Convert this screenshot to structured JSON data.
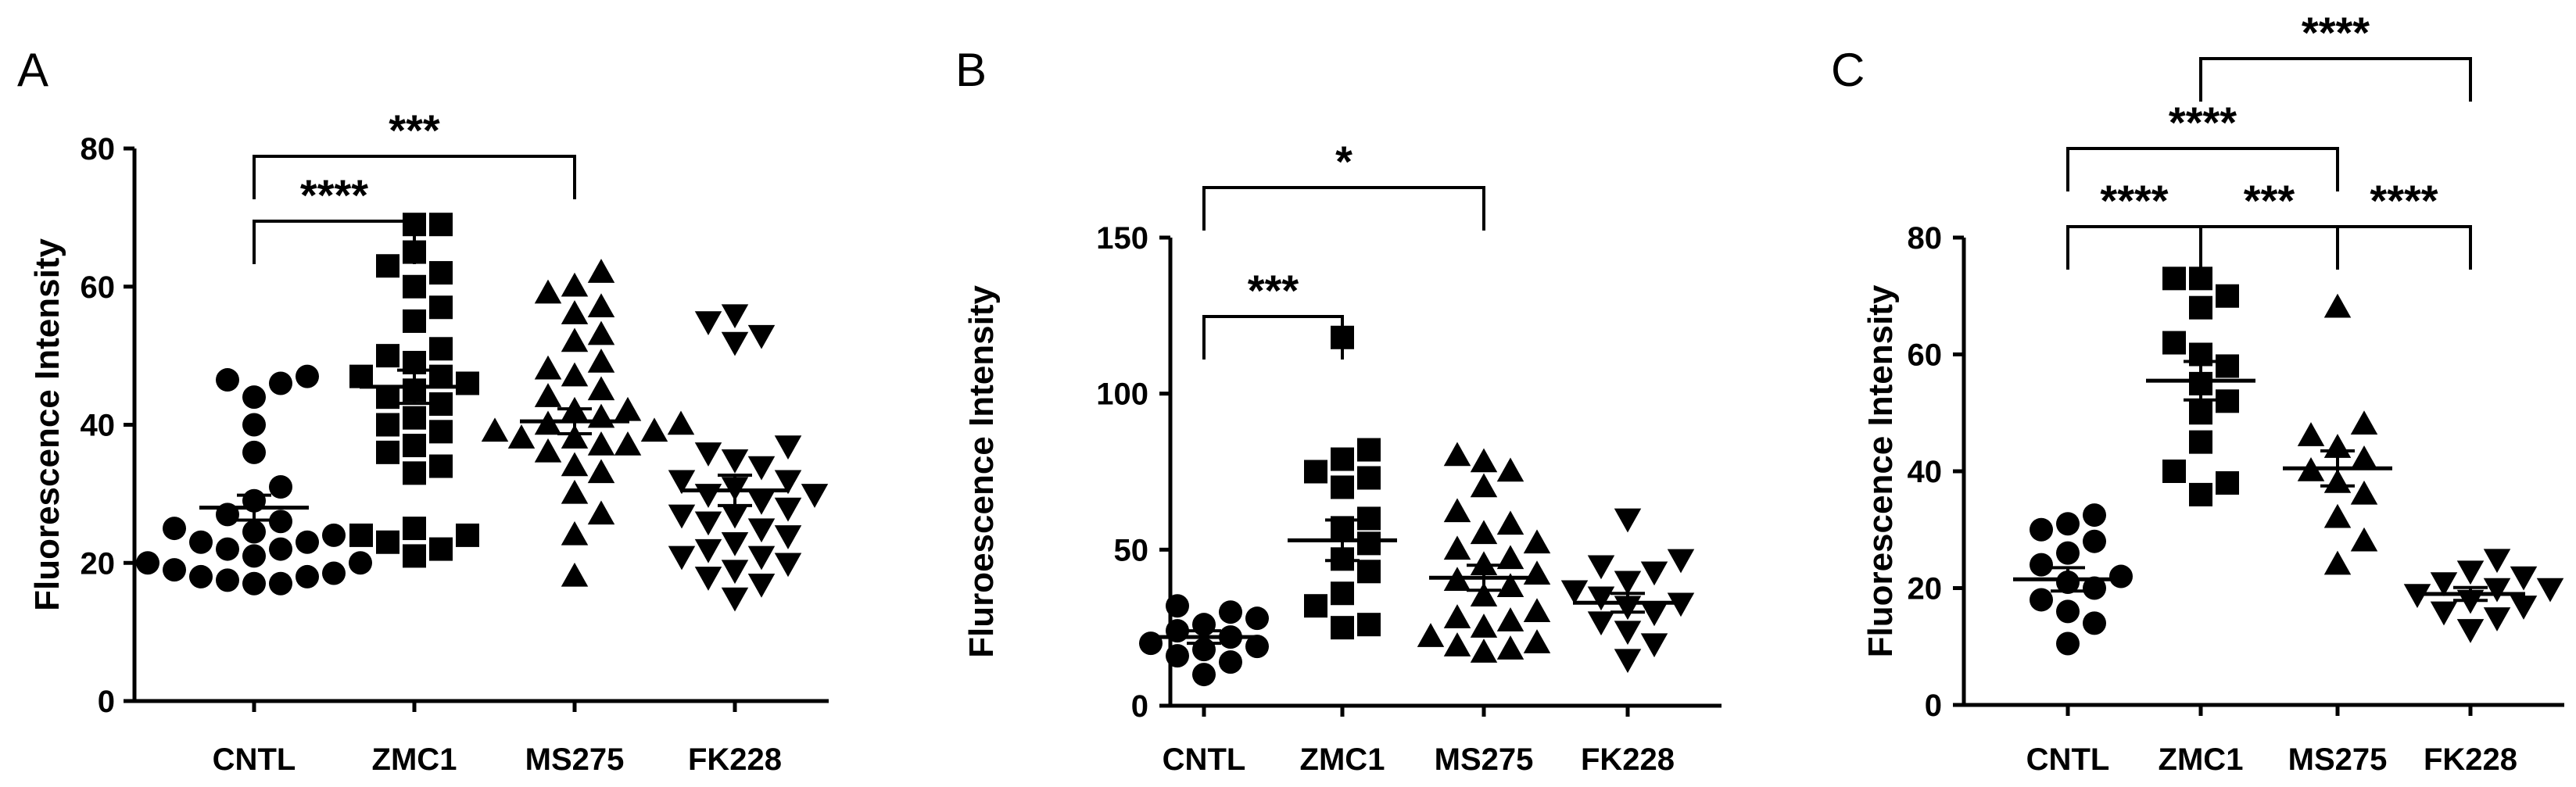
{
  "chart_data": [
    {
      "type": "scatter",
      "panel": "A",
      "ylabel": "Fluorescence Intensity",
      "ylim": [
        0,
        80
      ],
      "yticks": [
        0,
        20,
        40,
        60,
        80
      ],
      "categories": [
        "CNTL",
        "ZMC1",
        "MS275",
        "FK228"
      ],
      "series": [
        {
          "category": "CNTL",
          "marker": "circle",
          "values": [
            17,
            17,
            17.5,
            18,
            18,
            18.5,
            19,
            20,
            20,
            21,
            22,
            22,
            23,
            23,
            24,
            24.5,
            25,
            26,
            27,
            29,
            31,
            36,
            40,
            44,
            46,
            46.5,
            47
          ],
          "mean": 28,
          "sem": 1.8
        },
        {
          "category": "ZMC1",
          "marker": "square",
          "values": [
            21,
            22,
            23,
            24,
            24,
            25,
            33,
            34,
            36,
            37,
            39,
            40,
            41,
            43,
            44,
            45,
            46,
            47,
            47,
            49,
            50,
            51,
            55,
            57,
            60,
            62,
            63,
            65,
            69,
            69
          ],
          "mean": 45.5,
          "sem": 2.4
        },
        {
          "category": "MS275",
          "marker": "triangle-up",
          "values": [
            18,
            24,
            27,
            30,
            33,
            34,
            36,
            37,
            37,
            38,
            38,
            39,
            39,
            40,
            40,
            41,
            42,
            42,
            44,
            45,
            47,
            48,
            49,
            52,
            53,
            56,
            57,
            59,
            60,
            62
          ],
          "mean": 40.5,
          "sem": 1.8
        },
        {
          "category": "FK228",
          "marker": "triangle-down",
          "values": [
            15,
            17,
            18,
            19,
            20,
            21,
            21,
            22,
            23,
            24,
            25,
            26,
            27,
            27,
            28,
            29,
            30,
            30,
            31,
            32,
            32,
            34,
            35,
            36,
            37,
            52,
            53,
            55,
            56
          ],
          "mean": 30.5,
          "sem": 2.2
        }
      ],
      "brackets": [
        {
          "from": "CNTL",
          "to": "ZMC1",
          "label": "****"
        },
        {
          "from": "CNTL",
          "to": "MS275",
          "label": "***"
        }
      ]
    },
    {
      "type": "scatter",
      "panel": "B",
      "ylabel": "Fluroescence  Intensity",
      "ylim": [
        0,
        150
      ],
      "yticks": [
        0,
        50,
        100,
        150
      ],
      "categories": [
        "CNTL",
        "ZMC1",
        "MS275",
        "FK228"
      ],
      "series": [
        {
          "category": "CNTL",
          "marker": "circle",
          "values": [
            10,
            14,
            16,
            18,
            19,
            20,
            22,
            24,
            26,
            28,
            30,
            32
          ],
          "mean": 22,
          "sem": 2.0
        },
        {
          "category": "ZMC1",
          "marker": "square",
          "values": [
            25,
            26,
            32,
            36,
            43,
            47,
            52,
            57,
            60,
            70,
            73,
            75,
            79,
            82,
            118
          ],
          "mean": 53,
          "sem": 6.5
        },
        {
          "category": "MS275",
          "marker": "triangle-up",
          "values": [
            17,
            18,
            19,
            20,
            22,
            25,
            27,
            28,
            30,
            35,
            38,
            40,
            42,
            45,
            47,
            50,
            52,
            55,
            58,
            62,
            70,
            75,
            78,
            80
          ],
          "mean": 41,
          "sem": 4.0
        },
        {
          "category": "FK228",
          "marker": "triangle-down",
          "values": [
            15,
            20,
            24,
            27,
            30,
            32,
            33,
            35,
            37,
            40,
            43,
            45,
            47,
            60
          ],
          "mean": 33,
          "sem": 3.0
        }
      ],
      "brackets": [
        {
          "from": "CNTL",
          "to": "ZMC1",
          "label": "***"
        },
        {
          "from": "CNTL",
          "to": "MS275",
          "label": "*"
        }
      ]
    },
    {
      "type": "scatter",
      "panel": "C",
      "ylabel": "Fluorescence Intensity",
      "ylim": [
        0,
        80
      ],
      "yticks": [
        0,
        20,
        40,
        60,
        80
      ],
      "categories": [
        "CNTL",
        "ZMC1",
        "MS275",
        "FK228"
      ],
      "series": [
        {
          "category": "CNTL",
          "marker": "circle",
          "values": [
            10.5,
            14,
            16,
            18,
            20,
            21,
            22,
            24,
            26,
            28,
            30,
            31,
            32.5
          ],
          "mean": 21.5,
          "sem": 2.0
        },
        {
          "category": "ZMC1",
          "marker": "square",
          "values": [
            36,
            38,
            40,
            45,
            50,
            52,
            55,
            58,
            60,
            62,
            68,
            70,
            73,
            73
          ],
          "mean": 55.5,
          "sem": 3.3
        },
        {
          "category": "MS275",
          "marker": "triangle-up",
          "values": [
            24,
            28,
            32,
            36,
            38,
            40,
            42,
            44,
            46,
            48,
            68
          ],
          "mean": 40.5,
          "sem": 3.0
        },
        {
          "category": "FK228",
          "marker": "triangle-down",
          "values": [
            13,
            15,
            16,
            17,
            18,
            19,
            20,
            20,
            21,
            22,
            23,
            25
          ],
          "mean": 19,
          "sem": 1.1
        }
      ],
      "brackets": [
        {
          "from": "CNTL",
          "to": "ZMC1",
          "label": "****"
        },
        {
          "from": "ZMC1",
          "to": "MS275",
          "label": "***"
        },
        {
          "from": "MS275",
          "to": "FK228",
          "label": "****"
        },
        {
          "from": "CNTL",
          "to": "MS275",
          "label": "****"
        },
        {
          "from": "ZMC1",
          "to": "FK228",
          "label": "****"
        }
      ]
    }
  ]
}
